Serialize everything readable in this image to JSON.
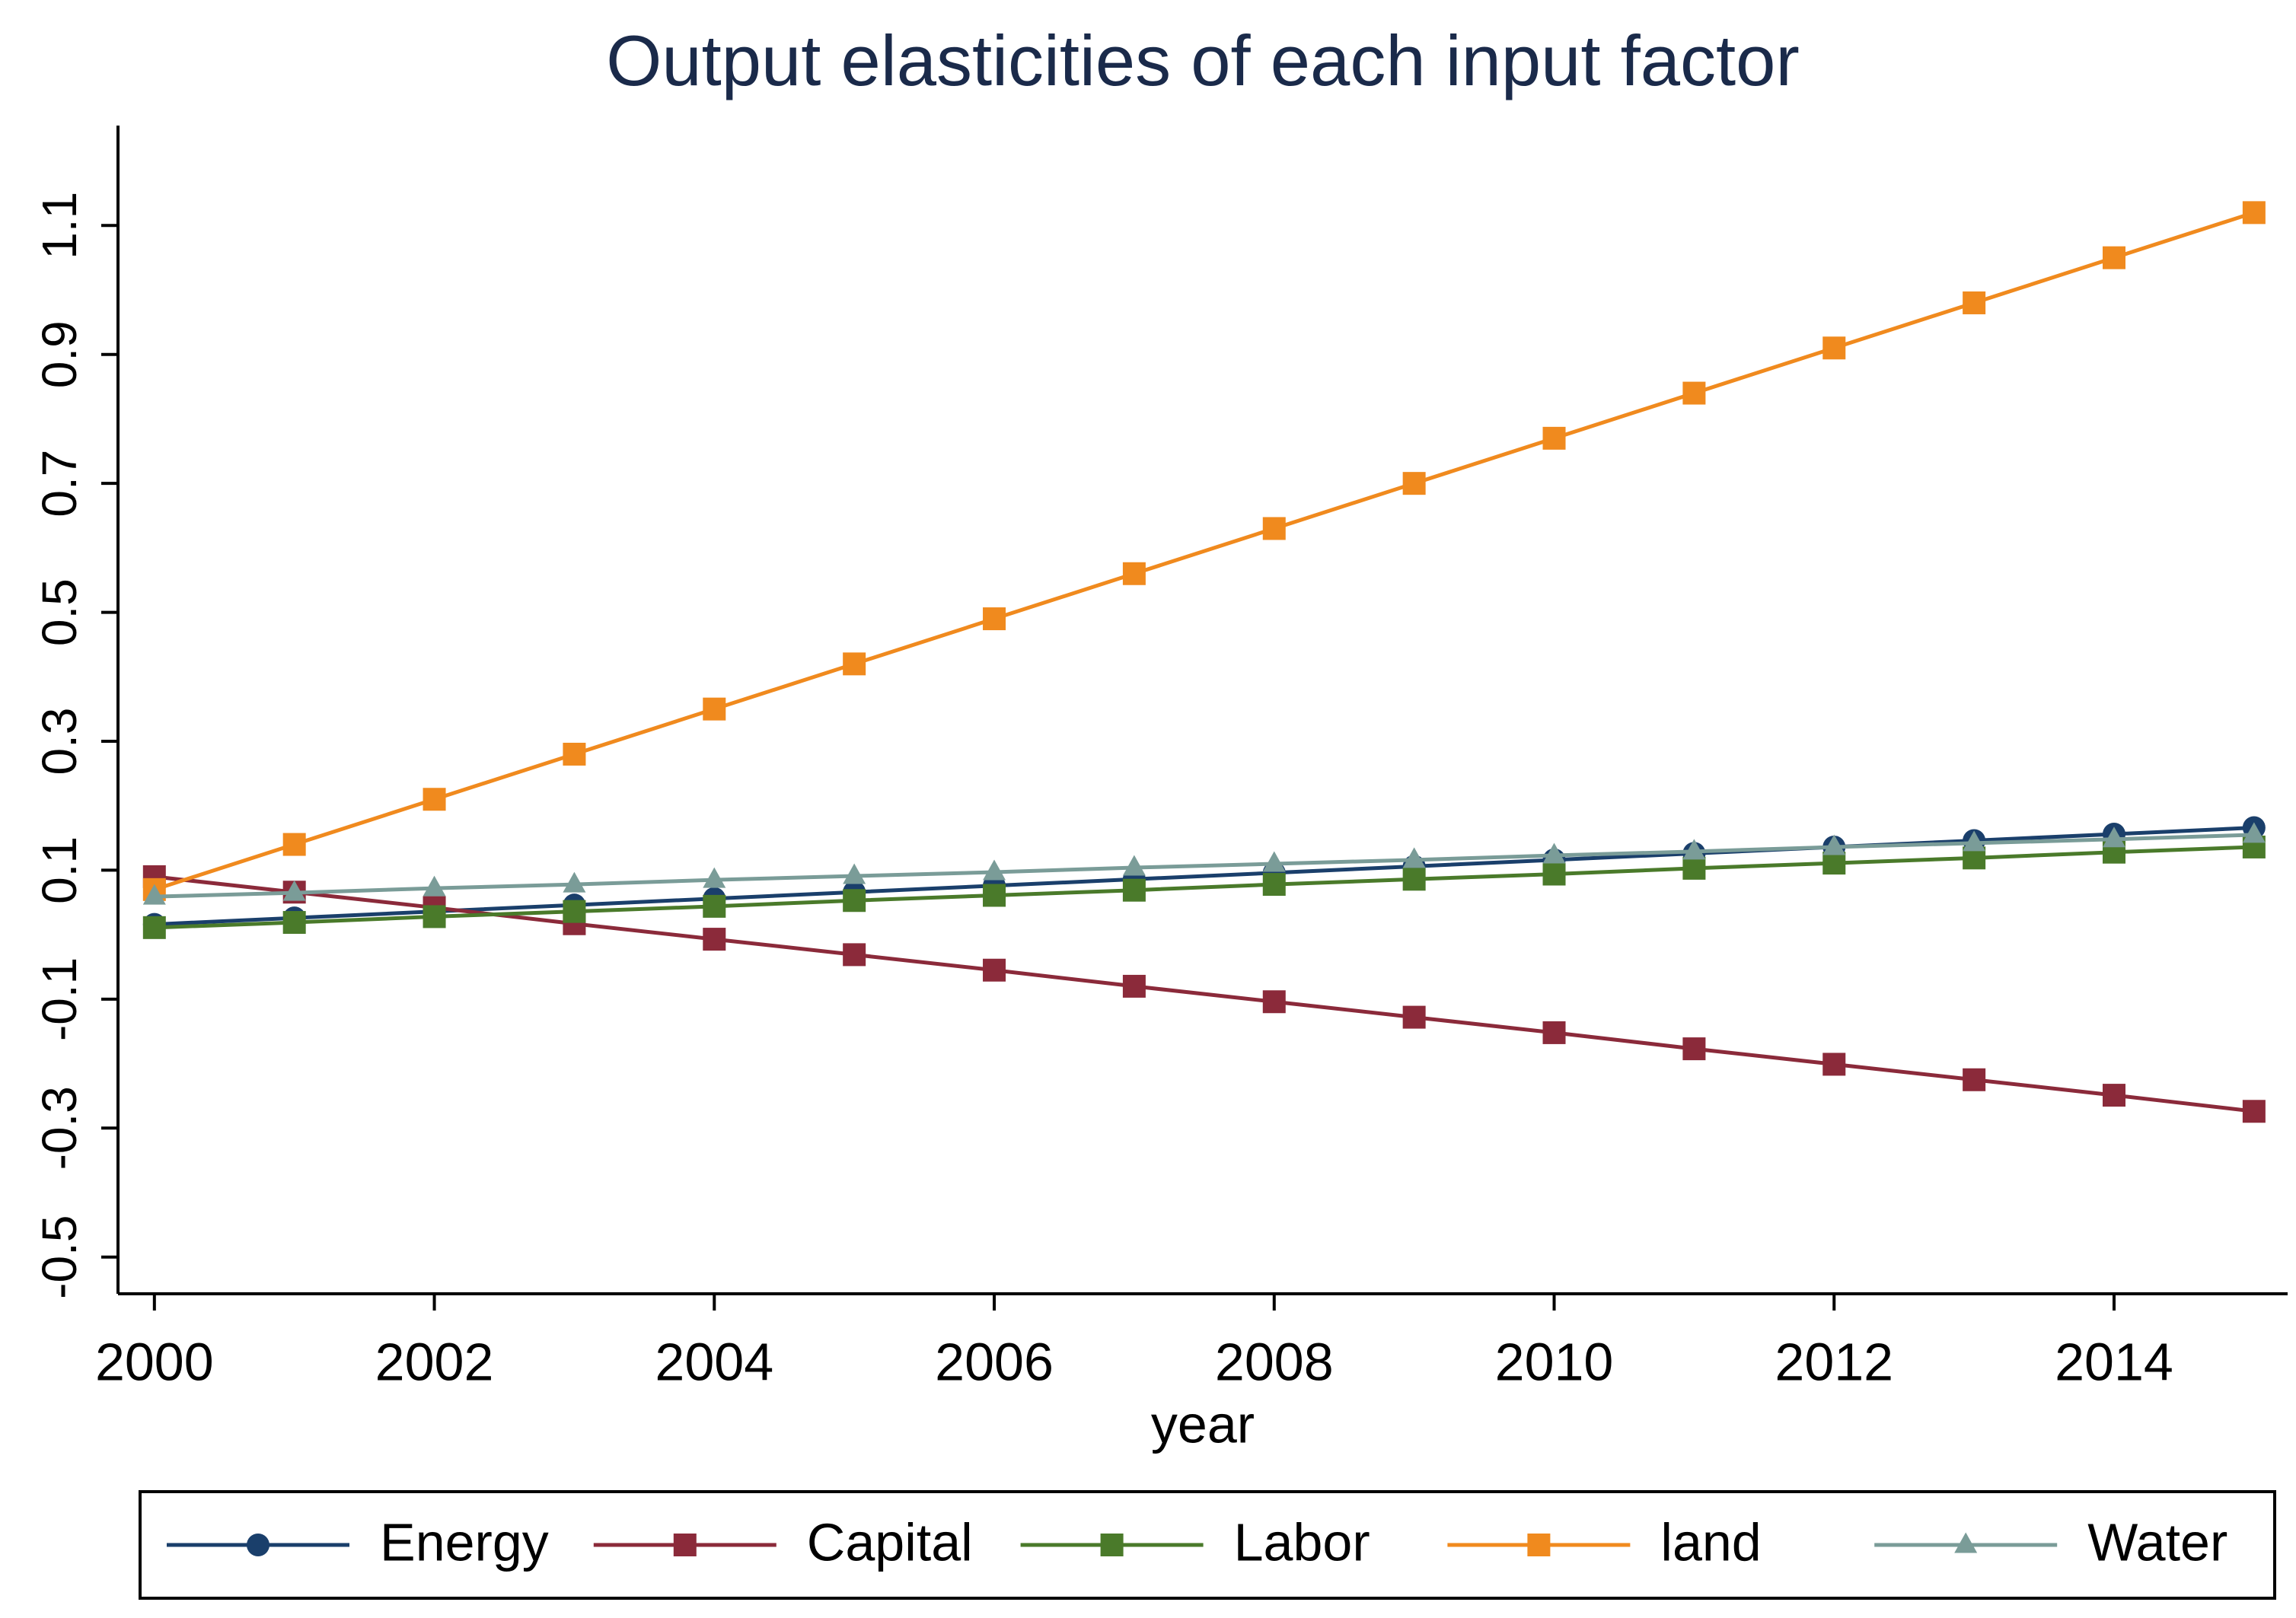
{
  "chart_data": {
    "type": "line",
    "title": "Output elasticities of each input factor",
    "x_label": "year",
    "x": [
      2000,
      2001,
      2002,
      2003,
      2004,
      2005,
      2006,
      2007,
      2008,
      2009,
      2010,
      2011,
      2012,
      2013,
      2014,
      2015
    ],
    "xlim": [
      1999.74,
      2015.24
    ],
    "xticks": [
      2000,
      2002,
      2004,
      2006,
      2008,
      2010,
      2012,
      2014
    ],
    "ylim": [
      -0.557,
      1.255
    ],
    "yticks": [
      -0.5,
      -0.3,
      -0.1,
      0.1,
      0.3,
      0.5,
      0.7,
      0.9,
      1.1
    ],
    "series": [
      {
        "name": "Energy",
        "color": "#1a3f6b",
        "marker": "circle",
        "values": [
          0.016,
          0.026,
          0.036,
          0.046,
          0.056,
          0.066,
          0.076,
          0.086,
          0.096,
          0.106,
          0.116,
          0.126,
          0.136,
          0.146,
          0.156,
          0.166
        ]
      },
      {
        "name": "Capital",
        "color": "#8b2a3a",
        "marker": "square",
        "values": [
          0.09,
          0.066,
          0.042,
          0.017,
          -0.007,
          -0.031,
          -0.055,
          -0.08,
          -0.104,
          -0.128,
          -0.152,
          -0.177,
          -0.201,
          -0.225,
          -0.249,
          -0.274
        ]
      },
      {
        "name": "Labor",
        "color": "#4a7a2a",
        "marker": "square",
        "values": [
          0.011,
          0.019,
          0.028,
          0.036,
          0.044,
          0.053,
          0.061,
          0.069,
          0.078,
          0.086,
          0.094,
          0.103,
          0.111,
          0.119,
          0.128,
          0.136
        ]
      },
      {
        "name": "land",
        "color": "#f08a1e",
        "marker": "square",
        "values": [
          0.07,
          0.14,
          0.21,
          0.28,
          0.35,
          0.42,
          0.49,
          0.56,
          0.63,
          0.7,
          0.77,
          0.84,
          0.91,
          0.98,
          1.05,
          1.12
        ]
      },
      {
        "name": "Water",
        "color": "#7a9c98",
        "marker": "triangle",
        "values": [
          0.059,
          0.065,
          0.072,
          0.078,
          0.085,
          0.091,
          0.097,
          0.104,
          0.11,
          0.116,
          0.123,
          0.129,
          0.136,
          0.142,
          0.148,
          0.155
        ]
      }
    ]
  }
}
